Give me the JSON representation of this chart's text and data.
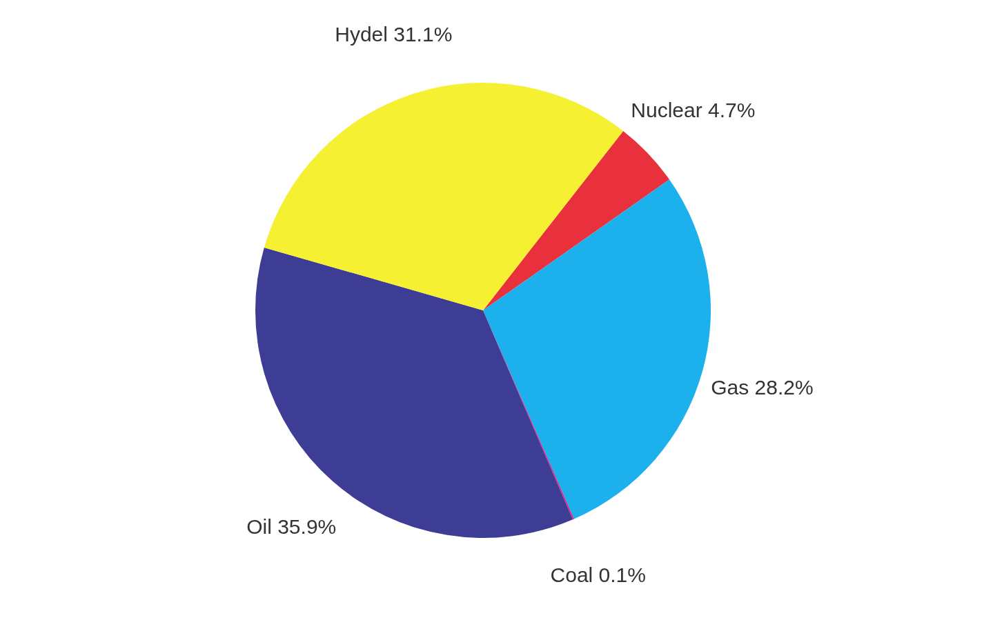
{
  "chart_data": {
    "type": "pie",
    "categories": [
      "Nuclear",
      "Gas",
      "Coal",
      "Oil",
      "Hydel"
    ],
    "values": [
      4.7,
      28.2,
      0.1,
      35.9,
      31.1
    ],
    "value_labels": [
      "4.7%",
      "28.2%",
      "0.1%",
      "35.9%",
      "31.1%"
    ],
    "colors": [
      "#e8313c",
      "#1cb0ec",
      "#e0208a",
      "#3d3d95",
      "#f5f032"
    ],
    "legend": false
  }
}
